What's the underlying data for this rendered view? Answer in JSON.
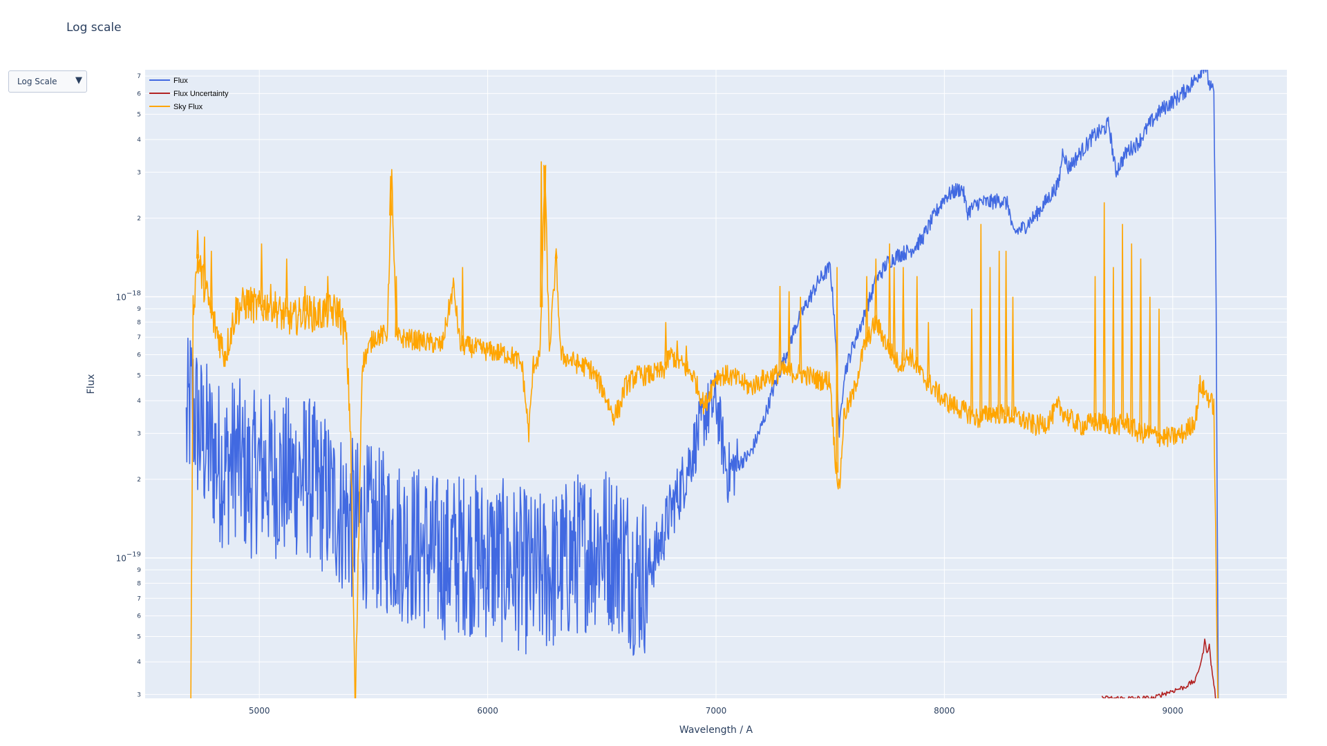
{
  "page": {
    "title": "Log scale"
  },
  "dropdown": {
    "label": "Log Scale",
    "arrow": "▼"
  },
  "chart_data": {
    "type": "line",
    "title": "Log scale",
    "xlabel": "Wavelength / A",
    "ylabel": "Flux",
    "xlim": [
      4500,
      9500
    ],
    "ylim": [
      2.9e-20,
      7.4e-18
    ],
    "yscale": "log",
    "grid": true,
    "legend_position": "top-left",
    "x_ticks": [
      5000,
      6000,
      7000,
      8000,
      9000
    ],
    "x_tick_labels": [
      "5000",
      "6000",
      "7000",
      "8000",
      "9000"
    ],
    "y_major_ticks": [
      {
        "value": 1e-19,
        "base": "10",
        "exp": "−19"
      },
      {
        "value": 1e-18,
        "base": "10",
        "exp": "−18"
      }
    ],
    "y_minor_ticks": [
      {
        "value": 3e-20,
        "label": "3"
      },
      {
        "value": 4e-20,
        "label": "4"
      },
      {
        "value": 5e-20,
        "label": "5"
      },
      {
        "value": 6e-20,
        "label": "6"
      },
      {
        "value": 7e-20,
        "label": "7"
      },
      {
        "value": 8e-20,
        "label": "8"
      },
      {
        "value": 9e-20,
        "label": "9"
      },
      {
        "value": 2e-19,
        "label": "2"
      },
      {
        "value": 3e-19,
        "label": "3"
      },
      {
        "value": 4e-19,
        "label": "4"
      },
      {
        "value": 5e-19,
        "label": "5"
      },
      {
        "value": 6e-19,
        "label": "6"
      },
      {
        "value": 7e-19,
        "label": "7"
      },
      {
        "value": 8e-19,
        "label": "8"
      },
      {
        "value": 9e-19,
        "label": "9"
      },
      {
        "value": 2e-18,
        "label": "2"
      },
      {
        "value": 3e-18,
        "label": "3"
      },
      {
        "value": 4e-18,
        "label": "4"
      },
      {
        "value": 5e-18,
        "label": "5"
      },
      {
        "value": 6e-18,
        "label": "6"
      },
      {
        "value": 7e-18,
        "label": "7"
      }
    ],
    "series": [
      {
        "name": "Flux",
        "color": "#4169e1",
        "x": [
          4680,
          4700,
          4720,
          4740,
          4760,
          4780,
          4800,
          4850,
          4900,
          4950,
          5000,
          5100,
          5200,
          5300,
          5400,
          5500,
          5600,
          5700,
          5800,
          5900,
          6000,
          6100,
          6200,
          6300,
          6400,
          6500,
          6600,
          6650,
          6700,
          6750,
          6800,
          6850,
          6900,
          6950,
          7000,
          7050,
          7100,
          7150,
          7200,
          7250,
          7300,
          7350,
          7400,
          7450,
          7500,
          7520,
          7540,
          7560,
          7600,
          7650,
          7700,
          7750,
          7800,
          7850,
          7900,
          7950,
          8000,
          8050,
          8080,
          8100,
          8150,
          8200,
          8250,
          8280,
          8300,
          8350,
          8400,
          8450,
          8500,
          8520,
          8540,
          8560,
          8600,
          8650,
          8700,
          8720,
          8750,
          8800,
          8850,
          8900,
          8950,
          9000,
          9050,
          9100,
          9140,
          9160,
          9180,
          9190,
          9200
        ],
        "y": [
          3e-19,
          4e-19,
          3.5e-19,
          3e-19,
          2.8e-19,
          2.7e-19,
          2.5e-19,
          2.2e-19,
          2.5e-19,
          2e-19,
          2.2e-19,
          2e-19,
          2.1e-19,
          1.7e-19,
          1.4e-19,
          1.3e-19,
          1.2e-19,
          1.1e-19,
          1e-19,
          1.05e-19,
          1e-19,
          9.5e-20,
          8.5e-20,
          9e-20,
          1.05e-19,
          1.15e-19,
          1e-19,
          8.5e-20,
          8.8e-20,
          1.1e-19,
          1.5e-19,
          1.9e-19,
          2.6e-19,
          3.5e-19,
          4e-19,
          2.1e-19,
          2.3e-19,
          2.5e-19,
          3.2e-19,
          4.4e-19,
          5.8e-19,
          7.8e-19,
          9.5e-19,
          1.15e-18,
          1.3e-18,
          8e-19,
          3e-19,
          5e-19,
          6.5e-19,
          8.5e-19,
          1.15e-18,
          1.35e-18,
          1.45e-18,
          1.5e-18,
          1.65e-18,
          2e-18,
          2.4e-18,
          2.55e-18,
          2.6e-18,
          2.1e-18,
          2.3e-18,
          2.3e-18,
          2.35e-18,
          2.25e-18,
          1.75e-18,
          1.85e-18,
          2.05e-18,
          2.35e-18,
          2.7e-18,
          3.7e-18,
          3.1e-18,
          3.25e-18,
          3.6e-18,
          4.1e-18,
          4.4e-18,
          4.6e-18,
          3e-18,
          3.6e-18,
          3.9e-18,
          4.6e-18,
          5.2e-18,
          5.6e-18,
          6.1e-18,
          6.8e-18,
          7.8e-18,
          6.5e-18,
          6e-18,
          1e-18,
          2e-20
        ]
      },
      {
        "name": "Flux Uncertainty",
        "color": "#b22222",
        "x": [
          8690,
          8700,
          8920,
          8950,
          9000,
          9050,
          9100,
          9130,
          9140,
          9150,
          9160,
          9170,
          9180,
          9190
        ],
        "y": [
          2.95e-20,
          2.9e-20,
          2.9e-20,
          3e-20,
          3.1e-20,
          3.2e-20,
          3.4e-20,
          4.2e-20,
          4.8e-20,
          4.4e-20,
          4.6e-20,
          3.8e-20,
          3.3e-20,
          2.8e-20
        ]
      },
      {
        "name": "Sky Flux",
        "color": "#ffa500",
        "x": [
          4700,
          4710,
          4730,
          4760,
          4800,
          4850,
          4900,
          4950,
          5000,
          5050,
          5100,
          5150,
          5200,
          5250,
          5300,
          5350,
          5380,
          5400,
          5420,
          5450,
          5500,
          5560,
          5580,
          5600,
          5700,
          5800,
          5850,
          5880,
          5900,
          6000,
          6100,
          6150,
          6180,
          6200,
          6230,
          6250,
          6270,
          6300,
          6320,
          6350,
          6400,
          6450,
          6500,
          6550,
          6580,
          6600,
          6650,
          6700,
          6770,
          6800,
          6850,
          6900,
          6950,
          7000,
          7050,
          7100,
          7150,
          7200,
          7250,
          7300,
          7400,
          7450,
          7500,
          7520,
          7540,
          7560,
          7600,
          7650,
          7700,
          7750,
          7800,
          7850,
          7900,
          7950,
          8000,
          8050,
          8100,
          8150,
          8200,
          8300,
          8400,
          8450,
          8500,
          8550,
          8600,
          8650,
          8700,
          8750,
          8800,
          8850,
          8900,
          8950,
          9000,
          9050,
          9100,
          9120,
          9150,
          9180,
          9200
        ],
        "y": [
          2.5e-20,
          9e-19,
          1.4e-18,
          1.1e-18,
          8e-19,
          6e-19,
          9e-19,
          9.5e-19,
          9e-19,
          9.5e-19,
          8.5e-19,
          8.2e-19,
          8.8e-19,
          8.5e-19,
          8.8e-19,
          8.8e-19,
          7e-19,
          3e-19,
          2.5e-20,
          5.5e-19,
          7e-19,
          7.2e-19,
          2.9e-18,
          7e-19,
          6.8e-19,
          6.5e-19,
          1.1e-18,
          6.5e-19,
          6.5e-19,
          6.2e-19,
          6e-19,
          5.5e-19,
          3e-19,
          5.5e-19,
          6e-19,
          3.2e-18,
          6.2e-19,
          1.4e-18,
          6e-19,
          5.8e-19,
          5.5e-19,
          5.3e-19,
          4.5e-19,
          3.5e-19,
          3.8e-19,
          4.5e-19,
          5e-19,
          5e-19,
          5.2e-19,
          6e-19,
          5.5e-19,
          5e-19,
          3.8e-19,
          5e-19,
          5e-19,
          4.8e-19,
          4.5e-19,
          4.8e-19,
          5e-19,
          5.2e-19,
          5e-19,
          4.8e-19,
          4.8e-19,
          2.5e-19,
          1.8e-19,
          3.5e-19,
          4.2e-19,
          6.5e-19,
          8e-19,
          6.5e-19,
          5.5e-19,
          6e-19,
          5e-19,
          4.5e-19,
          4e-19,
          3.8e-19,
          3.6e-19,
          3.4e-19,
          3.6e-19,
          3.5e-19,
          3.2e-19,
          3.3e-19,
          3.8e-19,
          3.4e-19,
          3.2e-19,
          3.3e-19,
          3.3e-19,
          3.2e-19,
          3.3e-19,
          3e-19,
          3e-19,
          2.9e-19,
          2.9e-19,
          3e-19,
          3.4e-19,
          4.6e-19,
          4.2e-19,
          3.8e-19,
          2e-20
        ]
      }
    ],
    "spikes": [
      {
        "series": "Sky Flux",
        "x": [
          4730,
          4760,
          4790,
          5010,
          5120,
          5200,
          5300,
          5575,
          5600,
          5890,
          6235,
          6250,
          6300,
          6780,
          6830,
          6870,
          7280,
          7320,
          7370,
          7530,
          7660,
          7700,
          7760,
          7780,
          7820,
          7880,
          7930,
          8120,
          8160,
          8200,
          8240,
          8270,
          8300,
          8660,
          8700,
          8740,
          8780,
          8820,
          8860,
          8900,
          8940
        ],
        "y": [
          1.8e-18,
          1.7e-18,
          1.5e-18,
          1.6e-18,
          1.4e-18,
          1.1e-18,
          1.2e-18,
          2.9e-18,
          1.2e-18,
          1.3e-18,
          3.3e-18,
          1.5e-18,
          1.5e-18,
          8e-19,
          6.8e-19,
          6.5e-19,
          1.1e-18,
          1.05e-18,
          1e-18,
          1.3e-18,
          1.2e-18,
          1.4e-18,
          1.6e-18,
          1.3e-18,
          1.3e-18,
          1.2e-18,
          8e-19,
          9e-19,
          1.9e-18,
          1.3e-18,
          1.5e-18,
          1.5e-18,
          1e-18,
          1.2e-18,
          2.3e-18,
          1.3e-18,
          1.9e-18,
          1.6e-18,
          1.4e-18,
          1e-18,
          9e-19
        ]
      }
    ]
  }
}
